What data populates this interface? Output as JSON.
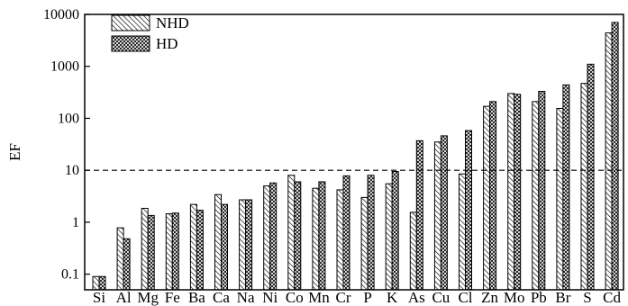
{
  "chart_data": {
    "type": "bar",
    "ylabel": "EF",
    "xlabel": "",
    "yscale": "log",
    "ylim": [
      0.05,
      10000
    ],
    "yticks": [
      {
        "value": 0.1,
        "label": "0.1"
      },
      {
        "value": 1,
        "label": "1"
      },
      {
        "value": 10,
        "label": "10"
      },
      {
        "value": 100,
        "label": "100"
      },
      {
        "value": 1000,
        "label": "1000"
      },
      {
        "value": 10000,
        "label": "10000"
      }
    ],
    "reference_line": {
      "value": 10,
      "style": "dashed"
    },
    "legend_position": "top-left",
    "categories": [
      "Si",
      "Al",
      "Mg",
      "Fe",
      "Ba",
      "Ca",
      "Na",
      "Ni",
      "Co",
      "Mn",
      "Cr",
      "P",
      "K",
      "As",
      "Cu",
      "Cl",
      "Zn",
      "Mo",
      "Pb",
      "Br",
      "S",
      "Cd"
    ],
    "series": [
      {
        "name": "NHD",
        "pattern": "diagonal-hatch",
        "values": [
          0.09,
          0.78,
          1.85,
          1.45,
          2.2,
          3.4,
          2.7,
          5.0,
          8.0,
          4.5,
          4.2,
          3.0,
          5.5,
          1.55,
          35,
          8.5,
          170,
          300,
          210,
          155,
          470,
          4400
        ]
      },
      {
        "name": "HD",
        "pattern": "cross-hatch",
        "values": [
          0.09,
          0.48,
          1.35,
          1.5,
          1.7,
          2.2,
          2.7,
          5.7,
          6.0,
          6.0,
          7.8,
          8.0,
          9.5,
          37,
          46,
          58,
          210,
          290,
          330,
          440,
          1100,
          7000
        ]
      }
    ]
  }
}
